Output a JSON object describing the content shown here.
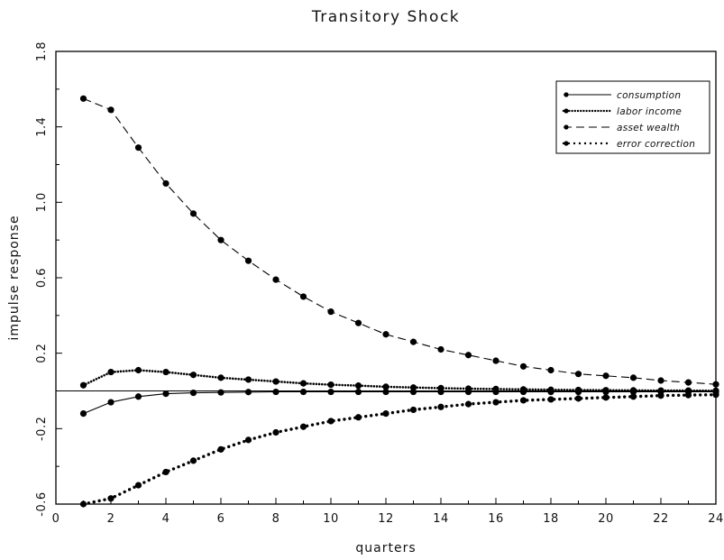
{
  "chart_data": {
    "type": "line",
    "title": "Transitory Shock",
    "xlabel": "quarters",
    "ylabel": "impulse response",
    "xlim": [
      0,
      24
    ],
    "ylim": [
      -0.6,
      1.8
    ],
    "x_ticks": [
      "0",
      "2",
      "4",
      "6",
      "8",
      "10",
      "12",
      "14",
      "16",
      "18",
      "20",
      "22",
      "24"
    ],
    "y_ticks": [
      "-0.6",
      "-0.2",
      "0.2",
      "0.6",
      "1.0",
      "1.4",
      "1.8"
    ],
    "zero_line": 0,
    "grid": false,
    "legend_position": "top-right",
    "x": [
      1,
      2,
      3,
      4,
      5,
      6,
      7,
      8,
      9,
      10,
      11,
      12,
      13,
      14,
      15,
      16,
      17,
      18,
      19,
      20,
      21,
      22,
      23,
      24
    ],
    "series": [
      {
        "name": "consumption",
        "style": "solid",
        "values": [
          -0.12,
          -0.06,
          -0.03,
          -0.015,
          -0.01,
          -0.008,
          -0.006,
          -0.005,
          -0.005,
          -0.005,
          -0.005,
          -0.005,
          -0.005,
          -0.005,
          -0.005,
          -0.005,
          -0.005,
          -0.005,
          -0.005,
          -0.005,
          -0.005,
          -0.005,
          -0.005,
          -0.005
        ]
      },
      {
        "name": "labor income",
        "style": "dense-dotted",
        "values": [
          0.03,
          0.1,
          0.11,
          0.1,
          0.085,
          0.07,
          0.06,
          0.05,
          0.04,
          0.033,
          0.028,
          0.022,
          0.018,
          0.015,
          0.012,
          0.01,
          0.008,
          0.006,
          0.005,
          0.004,
          0.003,
          0.002,
          0.002,
          0.001
        ]
      },
      {
        "name": "asset wealth",
        "style": "dashed",
        "values": [
          1.55,
          1.49,
          1.29,
          1.1,
          0.94,
          0.8,
          0.69,
          0.59,
          0.5,
          0.42,
          0.36,
          0.3,
          0.26,
          0.22,
          0.19,
          0.16,
          0.13,
          0.11,
          0.09,
          0.08,
          0.07,
          0.055,
          0.045,
          0.035
        ]
      },
      {
        "name": "error correction",
        "style": "sparse-dotted",
        "values": [
          -0.6,
          -0.57,
          -0.5,
          -0.43,
          -0.37,
          -0.31,
          -0.26,
          -0.22,
          -0.19,
          -0.16,
          -0.14,
          -0.12,
          -0.1,
          -0.085,
          -0.07,
          -0.06,
          -0.05,
          -0.045,
          -0.04,
          -0.035,
          -0.03,
          -0.025,
          -0.022,
          -0.02
        ]
      }
    ]
  }
}
